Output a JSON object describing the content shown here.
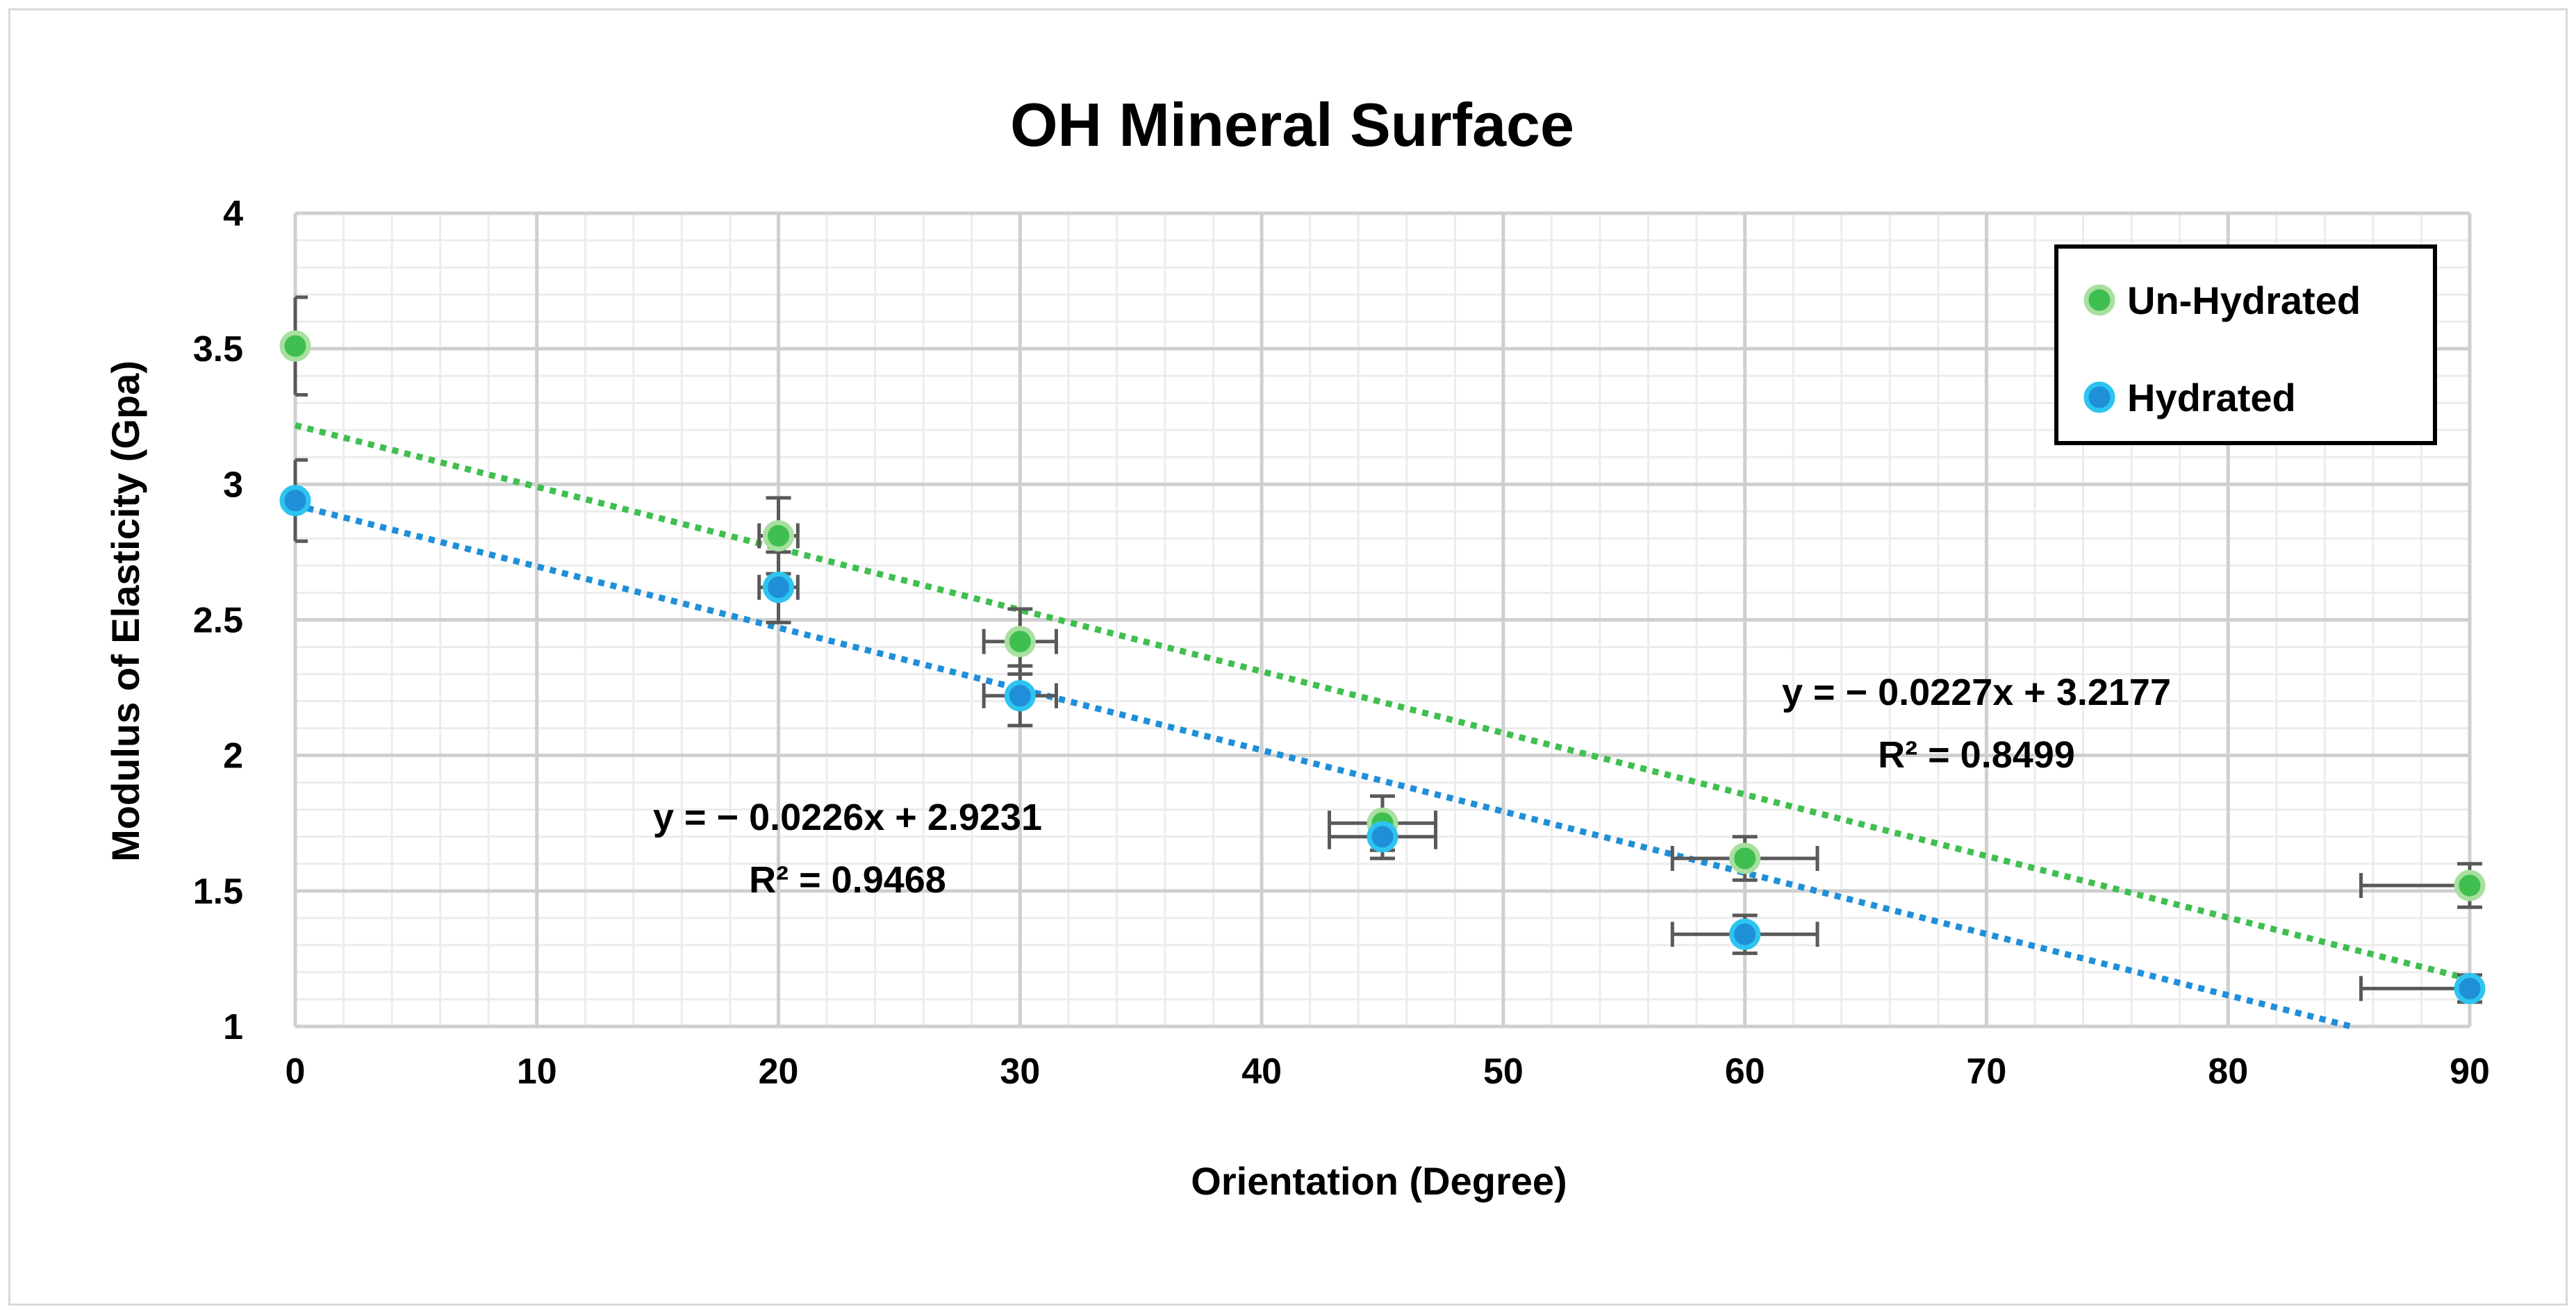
{
  "chart_data": {
    "type": "scatter",
    "title": "OH Mineral Surface",
    "xlabel": "Orientation (Degree)",
    "ylabel": "Modulus of Elasticity (Gpa)",
    "xlim": [
      0,
      90
    ],
    "ylim": [
      1,
      4
    ],
    "x_ticks": [
      0,
      10,
      20,
      30,
      40,
      50,
      60,
      70,
      80,
      90
    ],
    "y_ticks": [
      1,
      1.5,
      2,
      2.5,
      3,
      3.5,
      4
    ],
    "x_tick_labels": [
      "0",
      "10",
      "20",
      "30",
      "40",
      "50",
      "60",
      "70",
      "80",
      "90"
    ],
    "y_tick_labels": [
      "1",
      "1.5",
      "2",
      "2.5",
      "3",
      "3.5",
      "4"
    ],
    "grid": true,
    "legend_position": "top-right",
    "series": [
      {
        "name": "Un-Hydrated",
        "color": "#2db34a",
        "points": [
          {
            "x": 0,
            "y": 3.51,
            "yerr": 0.18,
            "xerr": 0
          },
          {
            "x": 20,
            "y": 2.81,
            "yerr": 0.14,
            "xerr": 0.8
          },
          {
            "x": 30,
            "y": 2.42,
            "yerr": 0.12,
            "xerr": 1.5
          },
          {
            "x": 45,
            "y": 1.75,
            "yerr": 0.1,
            "xerr": 2.2
          },
          {
            "x": 60,
            "y": 1.62,
            "yerr": 0.08,
            "xerr": 3
          },
          {
            "x": 90,
            "y": 1.52,
            "yerr": 0.08,
            "xerr": 4.5
          }
        ],
        "trendline": {
          "slope": -0.0227,
          "intercept": 3.2177,
          "r2": 0.8499
        }
      },
      {
        "name": "Hydrated",
        "color": "#1b7dc3",
        "points": [
          {
            "x": 0,
            "y": 2.94,
            "yerr": 0.15,
            "xerr": 0
          },
          {
            "x": 20,
            "y": 2.62,
            "yerr": 0.13,
            "xerr": 0.8
          },
          {
            "x": 30,
            "y": 2.22,
            "yerr": 0.11,
            "xerr": 1.5
          },
          {
            "x": 45,
            "y": 1.7,
            "yerr": 0.08,
            "xerr": 2.2
          },
          {
            "x": 60,
            "y": 1.34,
            "yerr": 0.07,
            "xerr": 3
          },
          {
            "x": 90,
            "y": 1.14,
            "yerr": 0.05,
            "xerr": 4.5
          }
        ],
        "trendline": {
          "slope": -0.0226,
          "intercept": 2.9231,
          "r2": 0.9468
        }
      }
    ],
    "annotations": {
      "unhydrated_equation": "y = − 0.0227x + 3.2177",
      "unhydrated_r2": "R² = 0.8499",
      "hydrated_equation": "y = − 0.0226x + 2.9231",
      "hydrated_r2": "R² = 0.9468"
    }
  },
  "colors": {
    "unhydrated_fill": "#3fbf4f",
    "unhydrated_stroke": "#a8e0a0",
    "hydrated_fill": "#1f8fd8",
    "hydrated_stroke": "#2ec4f0",
    "grid_major": "#cfcfcf",
    "grid_minor": "#ececec",
    "error_bar": "#595959"
  }
}
